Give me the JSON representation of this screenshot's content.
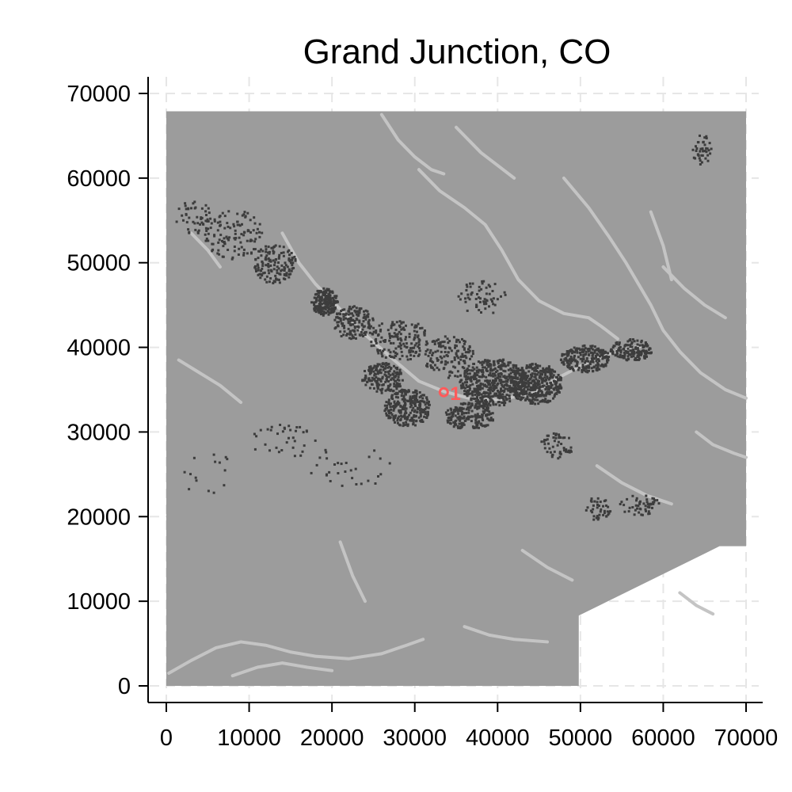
{
  "title": "Grand Junction, CO",
  "x_axis": {
    "ticks": [
      0,
      10000,
      20000,
      30000,
      40000,
      50000,
      60000,
      70000
    ],
    "labels": [
      "0",
      "10000",
      "20000",
      "30000",
      "40000",
      "50000",
      "60000",
      "70000"
    ]
  },
  "y_axis": {
    "ticks": [
      0,
      10000,
      20000,
      30000,
      40000,
      50000,
      60000,
      70000
    ],
    "labels": [
      "0",
      "10000",
      "20000",
      "30000",
      "40000",
      "50000",
      "60000",
      "70000"
    ]
  },
  "colors": {
    "terrain": "#9c9c9c",
    "rivers": "#c4c4c4",
    "urban": "#3c3c3c",
    "marker": "#ff5a5a",
    "grid": "#e6e6e6",
    "axis": "#000000"
  },
  "marker": {
    "label": "1",
    "x": 33500,
    "y": 34700
  }
}
